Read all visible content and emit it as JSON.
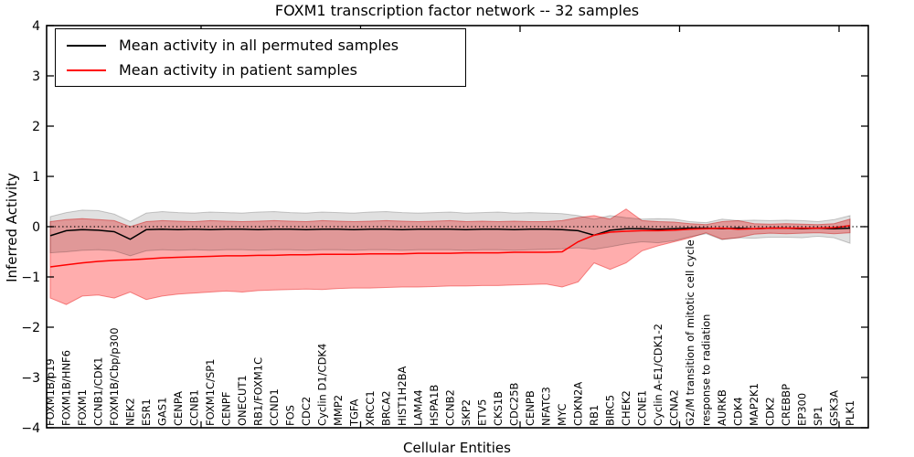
{
  "chart_data": {
    "type": "line",
    "title": "FOXM1 transcription factor network -- 32 samples",
    "xlabel": "Cellular Entities",
    "ylabel": "Inferred Activity",
    "ylim": [
      -4,
      4
    ],
    "y_ticks": [
      {
        "value": 4,
        "label": "4"
      },
      {
        "value": 3,
        "label": "3"
      },
      {
        "value": 2,
        "label": "2"
      },
      {
        "value": 1,
        "label": "1"
      },
      {
        "value": 0,
        "label": "0"
      },
      {
        "value": -1,
        "label": "−1"
      },
      {
        "value": -2,
        "label": "−2"
      },
      {
        "value": -3,
        "label": "−3"
      },
      {
        "value": -4,
        "label": "−4"
      }
    ],
    "grid": false,
    "zero_line": {
      "value": 0,
      "style": "dotted",
      "color": "#000000"
    },
    "legend_position": "upper left",
    "legend": [
      {
        "label": "Mean activity in all permuted samples",
        "color": "#000000"
      },
      {
        "label": "Mean activity in patient samples",
        "color": "#ff0000"
      }
    ],
    "categories": [
      "FOXM1B/p19",
      "FOXM1B/HNF6",
      "FOXM1",
      "CCNB1/CDK1",
      "FOXM1B/Cbp/p300",
      "NEK2",
      "ESR1",
      "GAS1",
      "CENPA",
      "CCNB1",
      "FOXM1C/SP1",
      "CENPF",
      "ONECUT1",
      "RB1/FOXM1C",
      "CCND1",
      "FOS",
      "CDC2",
      "Cyclin D1/CDK4",
      "MMP2",
      "TGFA",
      "XRCC1",
      "BRCA2",
      "HIST1H2BA",
      "LAMA4",
      "HSPA1B",
      "CCNB2",
      "SKP2",
      "ETV5",
      "CKS1B",
      "CDC25B",
      "CENPB",
      "NFATC3",
      "MYC",
      "CDKN2A",
      "RB1",
      "BIRC5",
      "CHEK2",
      "CCNE1",
      "Cyclin A-E1/CDK1-2",
      "CCNA2",
      "G2/M transition of mitotic cell cycle",
      "response to radiation",
      "AURKB",
      "CDK4",
      "MAP2K1",
      "CDK2",
      "CREBBP",
      "EP300",
      "SP1",
      "GSK3A",
      "PLK1"
    ],
    "series": [
      {
        "name": "Mean activity in all permuted samples",
        "color": "#000000",
        "values": [
          -0.18,
          -0.08,
          -0.06,
          -0.07,
          -0.1,
          -0.25,
          -0.06,
          -0.05,
          -0.06,
          -0.05,
          -0.06,
          -0.05,
          -0.05,
          -0.06,
          -0.05,
          -0.05,
          -0.06,
          -0.05,
          -0.05,
          -0.06,
          -0.05,
          -0.05,
          -0.06,
          -0.05,
          -0.05,
          -0.05,
          -0.06,
          -0.05,
          -0.05,
          -0.06,
          -0.05,
          -0.05,
          -0.06,
          -0.08,
          -0.17,
          -0.07,
          -0.04,
          -0.04,
          -0.05,
          -0.04,
          -0.03,
          -0.03,
          -0.04,
          -0.03,
          -0.04,
          -0.03,
          -0.03,
          -0.04,
          -0.03,
          -0.04,
          -0.03
        ],
        "band_upper": [
          0.2,
          0.28,
          0.33,
          0.32,
          0.25,
          0.1,
          0.27,
          0.3,
          0.28,
          0.27,
          0.29,
          0.28,
          0.27,
          0.29,
          0.3,
          0.28,
          0.27,
          0.29,
          0.28,
          0.27,
          0.29,
          0.3,
          0.28,
          0.27,
          0.28,
          0.29,
          0.27,
          0.28,
          0.29,
          0.27,
          0.28,
          0.27,
          0.26,
          0.22,
          0.15,
          0.22,
          0.18,
          0.15,
          0.16,
          0.15,
          0.1,
          0.08,
          0.15,
          0.12,
          0.13,
          0.12,
          0.13,
          0.12,
          0.1,
          0.14,
          0.22
        ],
        "band_lower": [
          -0.52,
          -0.5,
          -0.47,
          -0.46,
          -0.48,
          -0.58,
          -0.48,
          -0.46,
          -0.47,
          -0.46,
          -0.47,
          -0.46,
          -0.46,
          -0.47,
          -0.46,
          -0.46,
          -0.47,
          -0.46,
          -0.46,
          -0.47,
          -0.46,
          -0.46,
          -0.47,
          -0.46,
          -0.46,
          -0.46,
          -0.47,
          -0.46,
          -0.46,
          -0.47,
          -0.46,
          -0.45,
          -0.44,
          -0.42,
          -0.45,
          -0.4,
          -0.34,
          -0.3,
          -0.32,
          -0.28,
          -0.2,
          -0.14,
          -0.26,
          -0.22,
          -0.23,
          -0.21,
          -0.21,
          -0.22,
          -0.19,
          -0.22,
          -0.33
        ]
      },
      {
        "name": "Mean activity in patient samples",
        "color": "#ff0000",
        "values": [
          -0.8,
          -0.76,
          -0.72,
          -0.69,
          -0.67,
          -0.66,
          -0.64,
          -0.62,
          -0.61,
          -0.6,
          -0.59,
          -0.58,
          -0.58,
          -0.57,
          -0.57,
          -0.56,
          -0.56,
          -0.55,
          -0.55,
          -0.55,
          -0.54,
          -0.54,
          -0.54,
          -0.53,
          -0.53,
          -0.53,
          -0.52,
          -0.52,
          -0.52,
          -0.51,
          -0.51,
          -0.51,
          -0.5,
          -0.3,
          -0.17,
          -0.11,
          -0.09,
          -0.08,
          -0.08,
          -0.07,
          -0.05,
          -0.04,
          -0.03,
          -0.05,
          -0.04,
          -0.03,
          -0.03,
          -0.03,
          -0.03,
          -0.02,
          0.02
        ],
        "band_upper": [
          0.1,
          0.14,
          0.16,
          0.14,
          0.12,
          0.0,
          0.1,
          0.12,
          0.11,
          0.1,
          0.12,
          0.11,
          0.1,
          0.11,
          0.12,
          0.11,
          0.1,
          0.12,
          0.11,
          0.1,
          0.11,
          0.12,
          0.11,
          0.1,
          0.11,
          0.12,
          0.1,
          0.11,
          0.1,
          0.11,
          0.1,
          0.1,
          0.12,
          0.18,
          0.22,
          0.15,
          0.35,
          0.12,
          0.1,
          0.09,
          0.06,
          0.04,
          0.1,
          0.12,
          0.06,
          0.05,
          0.06,
          0.05,
          0.04,
          0.06,
          0.15
        ],
        "band_lower": [
          -1.42,
          -1.55,
          -1.38,
          -1.36,
          -1.42,
          -1.3,
          -1.45,
          -1.38,
          -1.34,
          -1.32,
          -1.3,
          -1.28,
          -1.3,
          -1.27,
          -1.26,
          -1.25,
          -1.24,
          -1.25,
          -1.23,
          -1.22,
          -1.22,
          -1.21,
          -1.2,
          -1.2,
          -1.19,
          -1.18,
          -1.18,
          -1.17,
          -1.17,
          -1.16,
          -1.15,
          -1.14,
          -1.2,
          -1.1,
          -0.72,
          -0.85,
          -0.72,
          -0.48,
          -0.38,
          -0.3,
          -0.22,
          -0.12,
          -0.25,
          -0.22,
          -0.15,
          -0.13,
          -0.14,
          -0.13,
          -0.12,
          -0.14,
          -0.12
        ]
      }
    ],
    "colors": {
      "permuted_line": "#000000",
      "patient_line": "#ff0000",
      "permuted_band_fill": "rgba(0,0,0,0.12)",
      "permuted_band_edge": "rgba(0,0,0,0.20)",
      "patient_band_fill": "rgba(255,0,0,0.32)",
      "patient_band_edge": "rgba(235,50,50,0.55)",
      "axis": "#000000"
    }
  }
}
